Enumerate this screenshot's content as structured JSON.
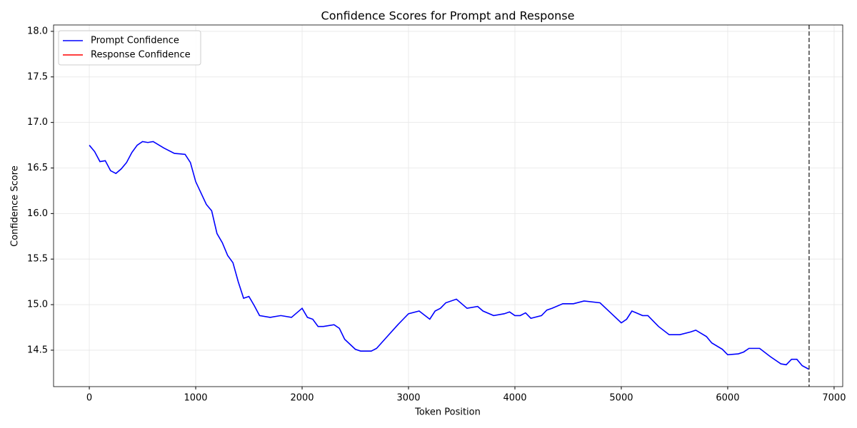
{
  "chart_data": {
    "type": "line",
    "title": "Confidence Scores for Prompt and Response",
    "xlabel": "Token Position",
    "ylabel": "Confidence Score",
    "xlim": [
      -336,
      7081
    ],
    "ylim": [
      14.1,
      18.07
    ],
    "xticks": [
      0,
      1000,
      2000,
      3000,
      4000,
      5000,
      6000,
      7000
    ],
    "yticks": [
      14.5,
      {
        "value": 15,
        "label": "15.0"
      },
      15.5,
      {
        "value": 16,
        "label": "16.0"
      },
      16.5,
      {
        "value": 17,
        "label": "17.0"
      },
      17.5,
      {
        "value": 18,
        "label": "18.0"
      }
    ],
    "grid": true,
    "legend": "upper left",
    "vline": {
      "x": 6765,
      "color": "#404040",
      "style": "dashed"
    },
    "series": [
      {
        "name": "Prompt Confidence",
        "color": "#0000ff",
        "x": [
          0,
          50,
          100,
          150,
          200,
          250,
          300,
          350,
          400,
          450,
          500,
          550,
          600,
          700,
          800,
          900,
          950,
          1000,
          1100,
          1150,
          1200,
          1250,
          1300,
          1350,
          1400,
          1450,
          1500,
          1550,
          1600,
          1700,
          1800,
          1900,
          1950,
          2000,
          2050,
          2100,
          2150,
          2200,
          2300,
          2350,
          2400,
          2500,
          2550,
          2650,
          2700,
          2800,
          2900,
          2950,
          3000,
          3100,
          3200,
          3250,
          3300,
          3350,
          3450,
          3550,
          3650,
          3700,
          3800,
          3900,
          3950,
          4000,
          4050,
          4100,
          4150,
          4250,
          4300,
          4350,
          4450,
          4550,
          4650,
          4800,
          4900,
          5000,
          5050,
          5100,
          5200,
          5250,
          5350,
          5450,
          5550,
          5650,
          5700,
          5800,
          5850,
          5950,
          6000,
          6100,
          6150,
          6200,
          6300,
          6400,
          6500,
          6550,
          6600,
          6650,
          6700,
          6765
        ],
        "values": [
          16.75,
          16.68,
          16.57,
          16.58,
          16.47,
          16.44,
          16.49,
          16.56,
          16.67,
          16.75,
          16.79,
          16.78,
          16.79,
          16.72,
          16.66,
          16.65,
          16.56,
          16.35,
          16.1,
          16.03,
          15.78,
          15.68,
          15.54,
          15.46,
          15.25,
          15.07,
          15.09,
          14.99,
          14.88,
          14.86,
          14.88,
          14.86,
          14.91,
          14.96,
          14.86,
          14.84,
          14.76,
          14.76,
          14.78,
          14.74,
          14.62,
          14.51,
          14.49,
          14.49,
          14.52,
          14.65,
          14.78,
          14.84,
          14.9,
          14.93,
          14.84,
          14.93,
          14.96,
          15.02,
          15.06,
          14.96,
          14.98,
          14.93,
          14.88,
          14.9,
          14.92,
          14.88,
          14.88,
          14.91,
          14.85,
          14.88,
          14.94,
          14.96,
          15.01,
          15.01,
          15.04,
          15.02,
          14.91,
          14.8,
          14.84,
          14.93,
          14.88,
          14.88,
          14.76,
          14.67,
          14.67,
          14.7,
          14.72,
          14.65,
          14.58,
          14.51,
          14.45,
          14.46,
          14.48,
          14.52,
          14.52,
          14.43,
          14.35,
          14.34,
          14.4,
          14.4,
          14.33,
          14.29
        ]
      },
      {
        "name": "Response Confidence",
        "color": "#ff0000",
        "x": [],
        "values": []
      }
    ]
  }
}
